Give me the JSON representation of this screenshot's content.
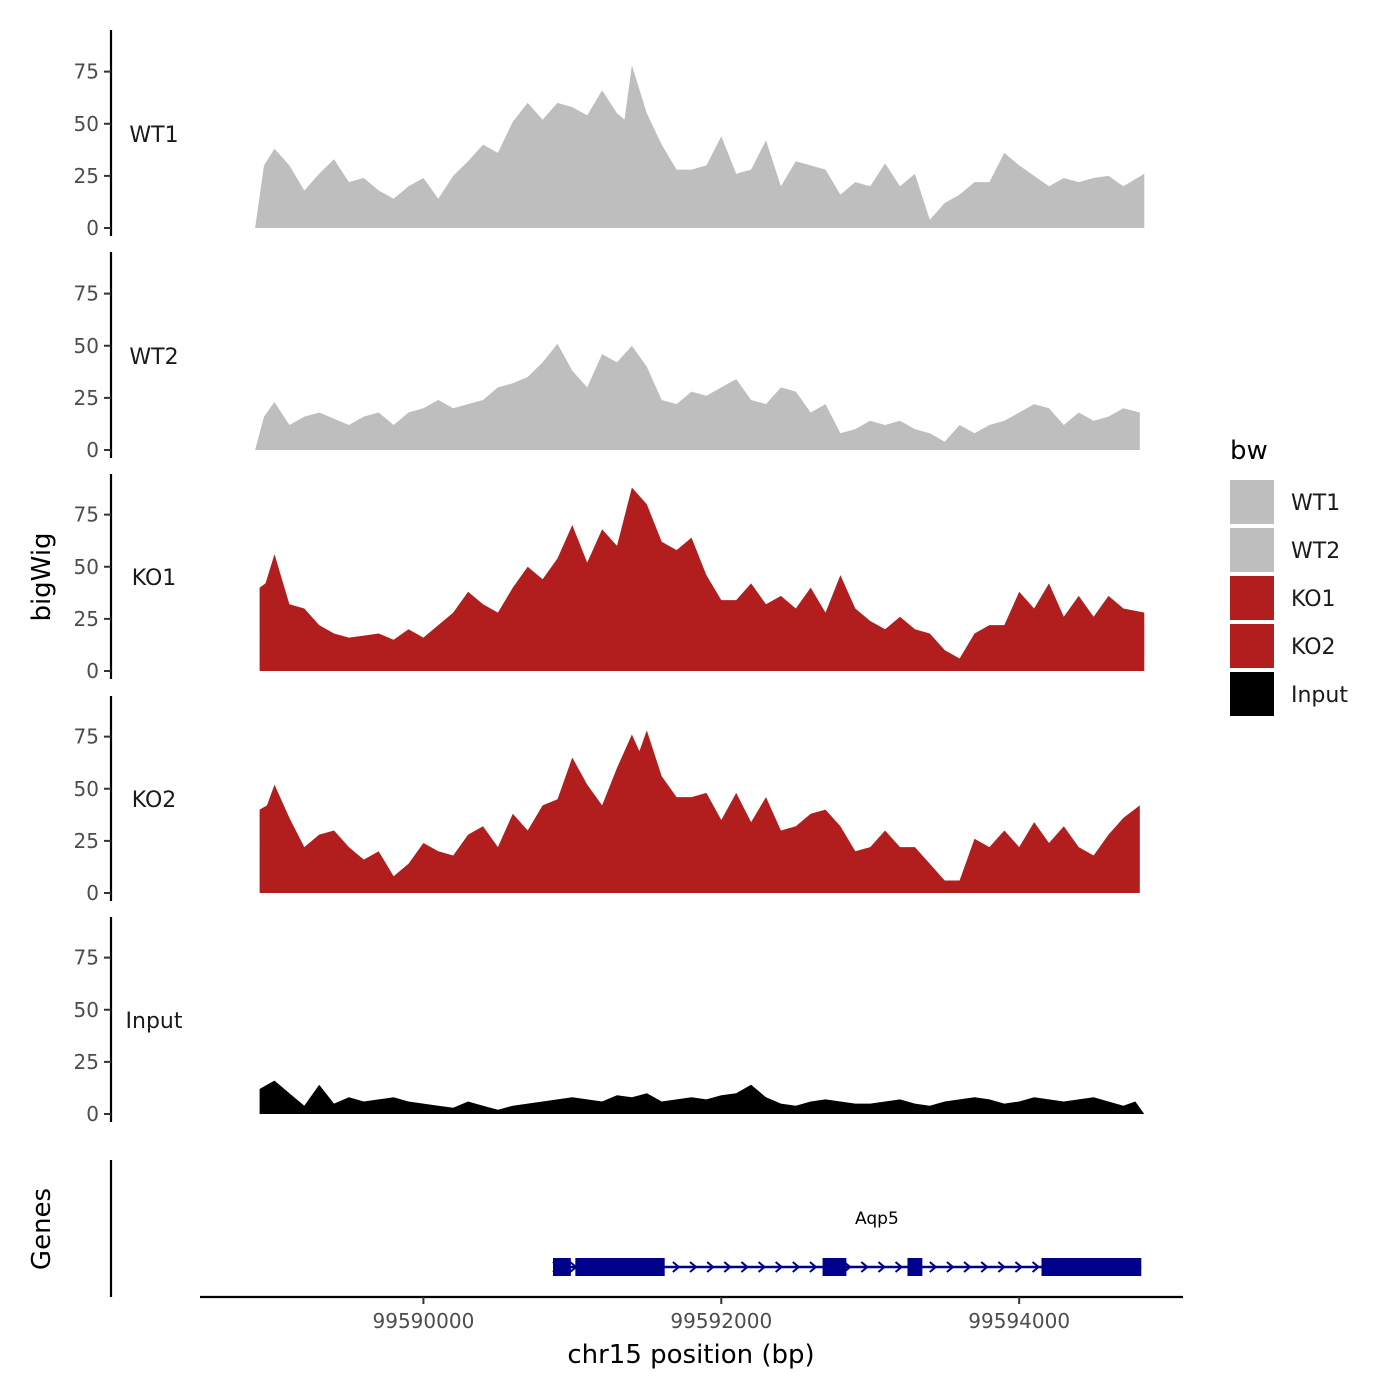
{
  "chart_data": {
    "type": "area",
    "x_axis": {
      "title": "chr15 position (bp)",
      "range": [
        99588500,
        99595100
      ],
      "ticks": [
        99590000,
        99592000,
        99594000
      ],
      "tick_labels": [
        "99590000",
        "99592000",
        "99594000"
      ]
    },
    "y_axis": {
      "title": "bigWig",
      "range": [
        0,
        95
      ],
      "ticks": [
        0,
        25,
        50,
        75
      ],
      "tick_labels": [
        "0",
        "25",
        "50",
        "75"
      ]
    },
    "grid": false,
    "legend": {
      "title": "bw",
      "placement": "right",
      "entries": [
        {
          "label": "WT1",
          "color": "#bebebe"
        },
        {
          "label": "WT2",
          "color": "#bebebe"
        },
        {
          "label": "KO1",
          "color": "#b21e1e"
        },
        {
          "label": "KO2",
          "color": "#b21e1e"
        },
        {
          "label": "Input",
          "color": "#000000"
        }
      ]
    },
    "series": [
      {
        "name": "WT1",
        "color": "#bebebe",
        "x": [
          99588870,
          99588930,
          99589000,
          99589100,
          99589200,
          99589300,
          99589400,
          99589500,
          99589600,
          99589700,
          99589800,
          99589900,
          99590000,
          99590100,
          99590200,
          99590300,
          99590400,
          99590500,
          99590600,
          99590700,
          99590800,
          99590900,
          99591000,
          99591100,
          99591200,
          99591300,
          99591350,
          99591400,
          99591500,
          99591600,
          99591700,
          99591800,
          99591900,
          99592000,
          99592100,
          99592200,
          99592300,
          99592400,
          99592500,
          99592600,
          99592700,
          99592800,
          99592900,
          99593000,
          99593100,
          99593200,
          99593300,
          99593400,
          99593500,
          99593600,
          99593700,
          99593800,
          99593900,
          99594000,
          99594100,
          99594200,
          99594300,
          99594400,
          99594500,
          99594600,
          99594700,
          99594840
        ],
        "values": [
          0,
          30,
          38,
          30,
          18,
          26,
          33,
          22,
          24,
          18,
          14,
          20,
          24,
          14,
          25,
          32,
          40,
          36,
          51,
          60,
          52,
          60,
          58,
          54,
          66,
          55,
          52,
          78,
          55,
          40,
          28,
          28,
          30,
          44,
          26,
          28,
          42,
          20,
          32,
          30,
          28,
          16,
          22,
          20,
          31,
          20,
          26,
          4,
          12,
          16,
          22,
          22,
          36,
          30,
          25,
          20,
          24,
          22,
          24,
          25,
          20,
          26
        ]
      },
      {
        "name": "WT2",
        "color": "#bebebe",
        "x": [
          99588870,
          99588930,
          99589000,
          99589100,
          99589200,
          99589300,
          99589400,
          99589500,
          99589600,
          99589700,
          99589800,
          99589900,
          99590000,
          99590100,
          99590200,
          99590300,
          99590400,
          99590500,
          99590600,
          99590700,
          99590800,
          99590900,
          99591000,
          99591100,
          99591200,
          99591300,
          99591400,
          99591500,
          99591600,
          99591700,
          99591800,
          99591900,
          99592000,
          99592100,
          99592200,
          99592300,
          99592400,
          99592500,
          99592600,
          99592700,
          99592800,
          99592900,
          99593000,
          99593100,
          99593200,
          99593300,
          99593400,
          99593500,
          99593600,
          99593700,
          99593800,
          99593900,
          99594000,
          99594100,
          99594200,
          99594300,
          99594400,
          99594500,
          99594600,
          99594700,
          99594810
        ],
        "values": [
          0,
          16,
          23,
          12,
          16,
          18,
          15,
          12,
          16,
          18,
          12,
          18,
          20,
          24,
          20,
          22,
          24,
          30,
          32,
          35,
          42,
          51,
          38,
          30,
          46,
          42,
          50,
          40,
          24,
          22,
          28,
          26,
          30,
          34,
          24,
          22,
          30,
          28,
          18,
          22,
          8,
          10,
          14,
          12,
          14,
          10,
          8,
          4,
          12,
          8,
          12,
          14,
          18,
          22,
          20,
          12,
          18,
          14,
          16,
          20,
          18
        ]
      },
      {
        "name": "KO1",
        "color": "#b21e1e",
        "x": [
          99588900,
          99588940,
          99589000,
          99589100,
          99589200,
          99589300,
          99589400,
          99589500,
          99589600,
          99589700,
          99589800,
          99589900,
          99590000,
          99590100,
          99590200,
          99590300,
          99590400,
          99590500,
          99590600,
          99590700,
          99590800,
          99590900,
          99591000,
          99591100,
          99591200,
          99591300,
          99591400,
          99591500,
          99591600,
          99591700,
          99591800,
          99591900,
          99592000,
          99592100,
          99592200,
          99592300,
          99592400,
          99592500,
          99592600,
          99592700,
          99592800,
          99592900,
          99593000,
          99593100,
          99593200,
          99593300,
          99593400,
          99593500,
          99593600,
          99593700,
          99593800,
          99593900,
          99594000,
          99594100,
          99594200,
          99594300,
          99594400,
          99594500,
          99594600,
          99594700,
          99594840
        ],
        "values": [
          40,
          42,
          56,
          32,
          30,
          22,
          18,
          16,
          17,
          18,
          15,
          20,
          16,
          22,
          28,
          38,
          32,
          28,
          40,
          50,
          44,
          54,
          70,
          52,
          68,
          60,
          88,
          80,
          62,
          58,
          64,
          46,
          34,
          34,
          42,
          32,
          36,
          30,
          40,
          28,
          46,
          30,
          24,
          20,
          26,
          20,
          18,
          10,
          6,
          18,
          22,
          22,
          38,
          30,
          42,
          26,
          36,
          26,
          36,
          30,
          28
        ]
      },
      {
        "name": "KO2",
        "color": "#b21e1e",
        "x": [
          99588900,
          99588950,
          99589000,
          99589100,
          99589200,
          99589300,
          99589400,
          99589500,
          99589600,
          99589700,
          99589800,
          99589900,
          99590000,
          99590100,
          99590200,
          99590300,
          99590400,
          99590500,
          99590600,
          99590700,
          99590800,
          99590900,
          99591000,
          99591100,
          99591200,
          99591300,
          99591400,
          99591450,
          99591500,
          99591600,
          99591700,
          99591800,
          99591900,
          99592000,
          99592100,
          99592200,
          99592300,
          99592400,
          99592500,
          99592600,
          99592700,
          99592800,
          99592900,
          99593000,
          99593100,
          99593200,
          99593300,
          99593400,
          99593500,
          99593600,
          99593700,
          99593800,
          99593900,
          99594000,
          99594100,
          99594200,
          99594300,
          99594400,
          99594500,
          99594600,
          99594700,
          99594810
        ],
        "values": [
          40,
          42,
          52,
          36,
          22,
          28,
          30,
          22,
          16,
          20,
          8,
          14,
          24,
          20,
          18,
          28,
          32,
          22,
          38,
          30,
          42,
          45,
          65,
          52,
          42,
          60,
          76,
          68,
          78,
          56,
          46,
          46,
          48,
          35,
          48,
          34,
          46,
          30,
          32,
          38,
          40,
          32,
          20,
          22,
          30,
          22,
          22,
          14,
          6,
          6,
          26,
          22,
          30,
          22,
          34,
          24,
          32,
          22,
          18,
          28,
          36,
          42
        ]
      },
      {
        "name": "Input",
        "color": "#000000",
        "x": [
          99588900,
          99588950,
          99589000,
          99589100,
          99589200,
          99589300,
          99589400,
          99589500,
          99589600,
          99589700,
          99589800,
          99589900,
          99590000,
          99590100,
          99590200,
          99590300,
          99590400,
          99590500,
          99590600,
          99590700,
          99590800,
          99590900,
          99591000,
          99591100,
          99591200,
          99591300,
          99591400,
          99591500,
          99591600,
          99591700,
          99591800,
          99591900,
          99592000,
          99592100,
          99592200,
          99592300,
          99592400,
          99592500,
          99592600,
          99592700,
          99592800,
          99592900,
          99593000,
          99593100,
          99593200,
          99593300,
          99593400,
          99593500,
          99593600,
          99593700,
          99593800,
          99593900,
          99594000,
          99594100,
          99594200,
          99594300,
          99594400,
          99594500,
          99594600,
          99594700,
          99594780,
          99594840
        ],
        "values": [
          12,
          14,
          16,
          10,
          4,
          14,
          5,
          8,
          6,
          7,
          8,
          6,
          5,
          4,
          3,
          6,
          4,
          2,
          4,
          5,
          6,
          7,
          8,
          7,
          6,
          9,
          8,
          10,
          6,
          7,
          8,
          7,
          9,
          10,
          14,
          8,
          5,
          4,
          6,
          7,
          6,
          5,
          5,
          6,
          7,
          5,
          4,
          6,
          7,
          8,
          7,
          5,
          6,
          8,
          7,
          6,
          7,
          8,
          6,
          4,
          6,
          0
        ]
      }
    ],
    "genes": {
      "title": "Genes",
      "name": "Aqp5",
      "strand": "+",
      "color": "#00008b",
      "start": 99590870,
      "end": 99594820,
      "exons": [
        [
          99590870,
          99590990
        ],
        [
          99591020,
          99591620
        ],
        [
          99592680,
          99592840
        ],
        [
          99593250,
          99593350
        ],
        [
          99594150,
          99594820
        ]
      ]
    }
  }
}
